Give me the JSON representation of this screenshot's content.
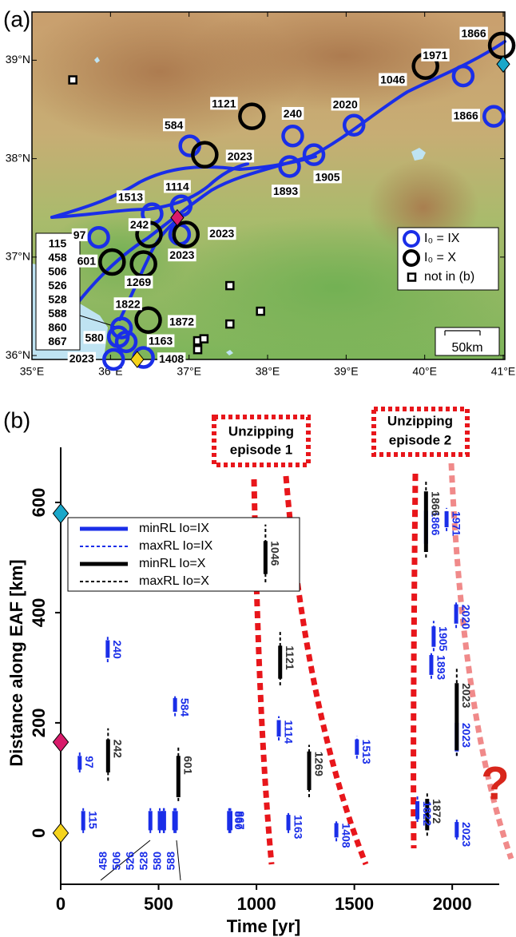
{
  "chart_data": [
    {
      "type": "map",
      "panel": "(a)",
      "xlim": [
        35,
        41.02
      ],
      "ylim": [
        35.96,
        39.49
      ],
      "xticks": [
        {
          "value": 35,
          "label": "35°E"
        },
        {
          "value": 36,
          "label": "36°E"
        },
        {
          "value": 37,
          "label": "37°E"
        },
        {
          "value": 38,
          "label": "38°E"
        },
        {
          "value": 39,
          "label": "39°E"
        },
        {
          "value": 40,
          "label": "40°E"
        },
        {
          "value": 41,
          "label": "41°E"
        }
      ],
      "yticks": [
        {
          "value": 36,
          "label": "36°N"
        },
        {
          "value": 37,
          "label": "37°N"
        },
        {
          "value": 38,
          "label": "38°N"
        },
        {
          "value": 39,
          "label": "39°N"
        }
      ],
      "series": [
        {
          "name": "I₀ = IX",
          "color": "#1a2ee8",
          "marker": "circle",
          "x": [
            40.49,
            40.88,
            39.1,
            38.32,
            37.01,
            38.59,
            38.28,
            36.9,
            36.53,
            35.85,
            36.88,
            36.14,
            36.1,
            36.2,
            36.04,
            36.42
          ],
          "y": [
            38.84,
            38.43,
            38.34,
            38.23,
            38.13,
            38.04,
            37.92,
            37.52,
            37.44,
            37.2,
            37.23,
            36.28,
            36.19,
            36.14,
            35.96,
            35.98
          ],
          "labels": [
            "1971",
            "1866",
            "2020",
            "240",
            "584",
            "1905",
            "1893",
            "1114",
            "1513",
            "97",
            "2023",
            "1822",
            "580",
            "1163",
            "2023",
            "1408"
          ]
        },
        {
          "name": "I₀ = X",
          "color": "#000000",
          "marker": "circle",
          "x": [
            36.49,
            36.96,
            36.02,
            36.42,
            37.8,
            37.2,
            40.01,
            40.98,
            36.48
          ],
          "y": [
            37.23,
            37.23,
            36.95,
            36.93,
            38.43,
            38.04,
            38.94,
            39.15,
            36.36
          ],
          "labels": [
            "242",
            "2023",
            "601",
            "1269",
            "1121",
            "2023",
            "1046",
            "1866",
            "1872"
          ]
        },
        {
          "name": "not in (b)",
          "color": "#000000",
          "marker": "square",
          "x": [
            35.52,
            37.52,
            37.52,
            37.91,
            37.11,
            37.19,
            37.11
          ],
          "y": [
            38.8,
            36.71,
            36.32,
            36.45,
            36.15,
            36.17,
            36.06
          ]
        }
      ],
      "markers": [
        {
          "x": 36.34,
          "y": 35.96,
          "color": "#f5d31c"
        },
        {
          "x": 36.85,
          "y": 37.4,
          "color": "#d81b6a"
        },
        {
          "x": 41.0,
          "y": 38.96,
          "color": "#1aa7c9"
        }
      ],
      "list_labels": [
        "115",
        "458",
        "506",
        "526",
        "528",
        "588",
        "860",
        "867"
      ],
      "scale_label": "50km"
    },
    {
      "type": "range",
      "panel": "(b)",
      "xlabel": "Time [yr]",
      "ylabel": "Distance along EAF [km]",
      "xlim": [
        0,
        2240
      ],
      "ylim": [
        -93,
        700
      ],
      "xticks": [
        0,
        500,
        1000,
        1500,
        2000
      ],
      "yticks": [
        0,
        200,
        400,
        600
      ],
      "series": [
        {
          "name": "minRL Io=IX",
          "color": "#1a2ee8",
          "style": "solid",
          "x": [
            115,
            97,
            240,
            458,
            506,
            526,
            528,
            580,
            588,
            584,
            860,
            867,
            1114,
            1163,
            1408,
            1513,
            1822,
            1866,
            1893,
            1905,
            1971,
            2020,
            2023,
            2023
          ],
          "low": [
            5,
            115,
            318,
            5,
            5,
            5,
            5,
            5,
            5,
            220,
            5,
            5,
            175,
            5,
            -8,
            142,
            25,
            525,
            287,
            338,
            555,
            380,
            148,
            -8
          ],
          "high": [
            40,
            140,
            350,
            40,
            40,
            40,
            40,
            40,
            40,
            245,
            40,
            40,
            205,
            33,
            18,
            170,
            58,
            585,
            323,
            375,
            584,
            415,
            200,
            20
          ],
          "labels": [
            "115",
            "97",
            "240",
            null,
            null,
            null,
            null,
            null,
            null,
            "584",
            "860",
            "867",
            "1114",
            "1163",
            "1408",
            "1513",
            "1822",
            "1866",
            "1893",
            "1905",
            "1971",
            "2020",
            "2023",
            "2023"
          ]
        },
        {
          "name": "maxRL Io=IX",
          "color": "#1a2ee8",
          "style": "dashed",
          "x": [
            115,
            97,
            240,
            458,
            506,
            526,
            528,
            580,
            588,
            584,
            860,
            867,
            1114,
            1163,
            1408,
            1513,
            1822,
            1866,
            1893,
            1905,
            1971,
            2020,
            2023,
            2023
          ],
          "low": [
            0,
            110,
            310,
            0,
            0,
            0,
            0,
            0,
            0,
            212,
            0,
            0,
            168,
            0,
            -15,
            135,
            20,
            515,
            280,
            330,
            548,
            372,
            140,
            -12
          ],
          "high": [
            45,
            148,
            356,
            45,
            45,
            45,
            45,
            45,
            45,
            252,
            45,
            45,
            212,
            40,
            25,
            176,
            70,
            590,
            330,
            385,
            590,
            422,
            205,
            25
          ]
        },
        {
          "name": "minRL Io=X",
          "color": "#000000",
          "style": "solid",
          "x": [
            242,
            601,
            1046,
            1121,
            1269,
            1866,
            1872,
            2023
          ],
          "low": [
            110,
            65,
            470,
            280,
            78,
            510,
            5,
            150
          ],
          "high": [
            170,
            140,
            530,
            340,
            148,
            620,
            62,
            272
          ],
          "labels": [
            "242",
            "601",
            "1046",
            "1121",
            "1269",
            "1866",
            "1872",
            "2023"
          ]
        },
        {
          "name": "maxRL Io=X",
          "color": "#000000",
          "style": "dashed",
          "x": [
            242,
            601,
            1046,
            1121,
            1269,
            1866,
            1872,
            2023
          ],
          "low": [
            95,
            58,
            455,
            268,
            65,
            500,
            -5,
            140
          ],
          "high": [
            190,
            155,
            560,
            365,
            160,
            640,
            75,
            300
          ]
        }
      ],
      "markers": [
        {
          "y": 580,
          "color": "#1aa7c9"
        },
        {
          "y": 165,
          "color": "#d81b6a"
        },
        {
          "y": 0,
          "color": "#f5d31c"
        }
      ],
      "cluster_labels": [
        "458",
        "506",
        "526",
        "528",
        "580",
        "588"
      ],
      "annotations": [
        "Unzipping",
        "episode 1",
        "Unzipping",
        "episode 2",
        "?"
      ]
    }
  ]
}
